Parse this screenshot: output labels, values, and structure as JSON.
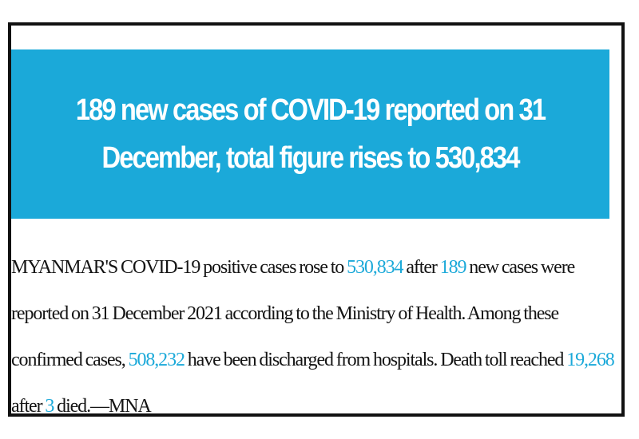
{
  "article": {
    "headline": "189 new cases of COVID-19 reported on 31 December, total figure rises to 530,834",
    "body": {
      "t1": "MYANMAR'S COVID-19 positive cases rose to ",
      "n1": "530,834",
      "t2": " after ",
      "n2": "189",
      "t3": " new cases were reported on 31 December 2021 according to the Ministry of Health. Among these confirmed cases, ",
      "n3": "508,232",
      "t4": " have been discharged from hospitals. Death toll reached ",
      "n4": "19,268",
      "t5": " after ",
      "n5": "3",
      "t6": " died.—MNA"
    }
  },
  "colors": {
    "accent": "#1ba9d9",
    "text": "#141414",
    "border": "#111111"
  }
}
